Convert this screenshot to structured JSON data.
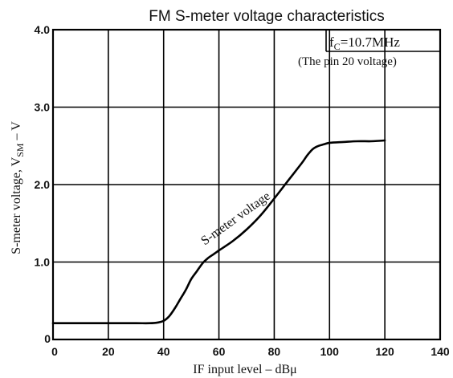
{
  "chart_data": {
    "type": "line",
    "title": "FM S-meter voltage characteristics",
    "xlabel": "IF input level – dBμ",
    "ylabel": {
      "prefix": "S-meter voltage,  V",
      "sub": "SM",
      "suffix": " – V"
    },
    "xlim": [
      0,
      140
    ],
    "ylim": [
      0,
      4.0
    ],
    "x_ticks": [
      "0",
      "20",
      "40",
      "60",
      "80",
      "100",
      "120",
      "140"
    ],
    "y_ticks": [
      "1.0",
      "2.0",
      "3.0",
      "4.0"
    ],
    "y_zero_label": "0",
    "grid": true,
    "annotations": {
      "fc_prefix": "f",
      "fc_sub": "C",
      "fc_value": "=10.7MHz",
      "pin_note": "(The pin 20 voltage)"
    },
    "series": [
      {
        "name": "S-meter voltage",
        "color": "#000000",
        "x": [
          0,
          10,
          20,
          30,
          35,
          38,
          40,
          42,
          44,
          46,
          48,
          50,
          52,
          54,
          56,
          58,
          60,
          65,
          70,
          75,
          80,
          85,
          90,
          92,
          94,
          96,
          98,
          100,
          105,
          110,
          115,
          120
        ],
        "y": [
          0.21,
          0.21,
          0.21,
          0.21,
          0.21,
          0.22,
          0.24,
          0.3,
          0.4,
          0.52,
          0.64,
          0.78,
          0.88,
          0.98,
          1.05,
          1.1,
          1.15,
          1.27,
          1.42,
          1.6,
          1.82,
          2.05,
          2.28,
          2.38,
          2.46,
          2.5,
          2.52,
          2.54,
          2.55,
          2.56,
          2.56,
          2.57
        ]
      }
    ]
  }
}
